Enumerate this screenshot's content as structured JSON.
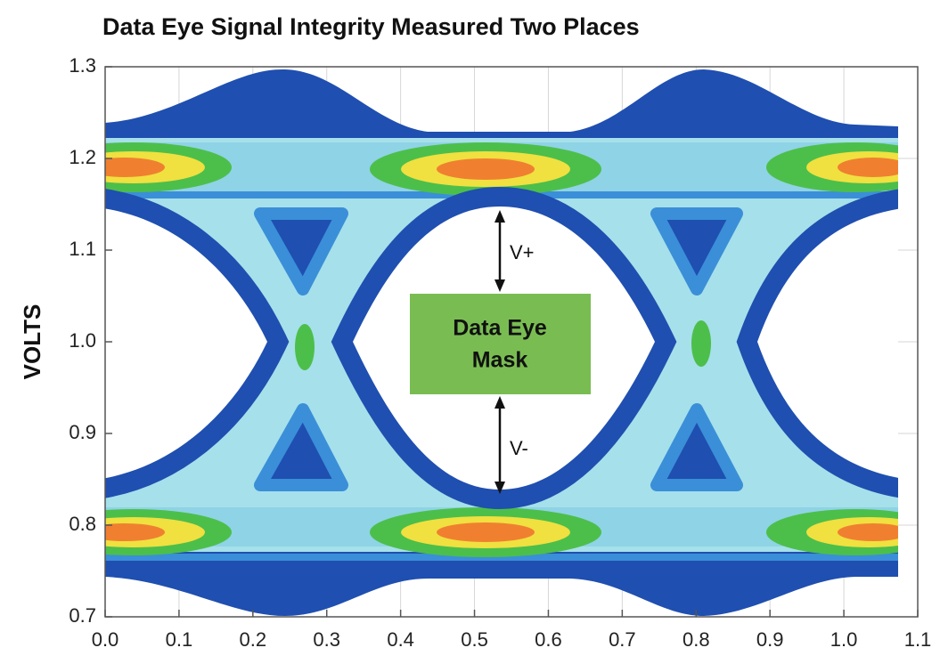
{
  "chart_data": {
    "type": "eye",
    "title": "Data Eye Signal Integrity Measured Two Places",
    "ylabel": "VOLTS",
    "xlim": [
      0,
      1.1
    ],
    "ylim": [
      0.7,
      1.3
    ],
    "xticks": [
      {
        "value": 0,
        "label": "0.0"
      },
      0.1,
      0.2,
      0.3,
      0.4,
      0.5,
      0.6,
      0.7,
      0.8,
      0.9,
      {
        "value": 1,
        "label": "1.0"
      },
      1.1
    ],
    "yticks": [
      0.7,
      0.8,
      0.9,
      {
        "value": 1,
        "label": "1.0"
      },
      1.1,
      1.2,
      1.3
    ],
    "grid": true,
    "mask_label": [
      "Data Eye",
      "Mask"
    ],
    "annotations": [
      "V+",
      "V-"
    ]
  }
}
